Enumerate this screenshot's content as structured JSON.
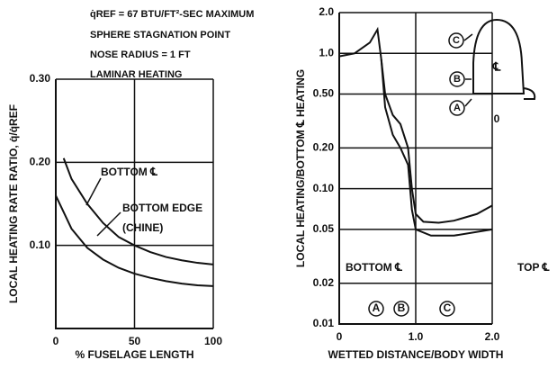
{
  "charts": [
    {
      "chart_data": {
        "type": "line",
        "x_label": "% FUSELAGE LENGTH",
        "y_label": "LOCAL HEATING RATE RATIO, q̇/q̇REF",
        "annotations": [
          "q̇REF = 67 BTU/FT²-SEC MAXIMUM",
          "SPHERE STAGNATION POINT",
          "NOSE RADIUS = 1 FT",
          "LAMINAR HEATING",
          "BOTTOM ℄",
          "BOTTOM EDGE",
          "(CHINE)"
        ],
        "xlim": [
          0,
          100
        ],
        "xticks": [
          0,
          50,
          100
        ],
        "ylim": [
          0,
          0.3
        ],
        "yticks": [
          {
            "value": 0.1,
            "label": "0.10"
          },
          {
            "value": 0.2,
            "label": "0.20"
          },
          {
            "value": 0.3,
            "label": "0.30"
          }
        ],
        "grid": true,
        "log_y": false,
        "series": [
          {
            "color": "#111",
            "x": [
              5,
              10,
              20,
              30,
              40,
              50,
              60,
              70,
              80,
              90,
              100
            ],
            "values": [
              0.205,
              0.18,
              0.15,
              0.127,
              0.11,
              0.1,
              0.092,
              0.086,
              0.082,
              0.079,
              0.077
            ]
          },
          {
            "color": "#111",
            "x": [
              0,
              5,
              10,
              20,
              30,
              40,
              50,
              60,
              70,
              80,
              90,
              100
            ],
            "values": [
              0.16,
              0.14,
              0.12,
              0.097,
              0.083,
              0.073,
              0.066,
              0.061,
              0.057,
              0.054,
              0.052,
              0.051
            ]
          }
        ]
      }
    },
    {
      "chart_data": {
        "type": "line",
        "x_label": "WETTED DISTANCE/BODY WIDTH",
        "y_label": "LOCAL HEATING/BOTTOM ℄ HEATING",
        "annotations": [
          "BOTTOM ℄",
          "TOP ℄",
          "A",
          "B",
          "C",
          "C",
          "B",
          "A",
          "℄",
          "0"
        ],
        "xlim": [
          0,
          2
        ],
        "xticks": [
          0,
          {
            "value": 1,
            "label": "1.0"
          },
          {
            "value": 2,
            "label": "2.0"
          }
        ],
        "ylim": [
          0.01,
          2
        ],
        "yticks": [
          0.01,
          0.02,
          0.05,
          {
            "value": 0.1,
            "label": "0.10"
          },
          {
            "value": 0.2,
            "label": "0.20"
          },
          {
            "value": 0.5,
            "label": "0.50"
          },
          {
            "value": 1,
            "label": "1.0"
          },
          {
            "value": 2,
            "label": "2.0"
          }
        ],
        "grid": true,
        "log_y": true,
        "series": [
          {
            "color": "#111",
            "x": [
              0,
              0.2,
              0.4,
              0.5,
              0.55,
              0.6,
              0.7,
              0.8,
              0.9,
              0.95,
              1.0,
              1.1,
              1.3,
              1.5,
              1.8,
              2.0
            ],
            "values": [
              0.95,
              1.0,
              1.2,
              1.5,
              0.9,
              0.5,
              0.35,
              0.3,
              0.2,
              0.1,
              0.065,
              0.057,
              0.056,
              0.058,
              0.065,
              0.075
            ]
          },
          {
            "color": "#111",
            "x": [
              0.55,
              0.6,
              0.7,
              0.8,
              0.9,
              0.95,
              1.0,
              1.2,
              1.5,
              2.0
            ],
            "values": [
              0.9,
              0.4,
              0.25,
              0.2,
              0.15,
              0.07,
              0.05,
              0.045,
              0.045,
              0.05
            ]
          }
        ]
      }
    }
  ]
}
